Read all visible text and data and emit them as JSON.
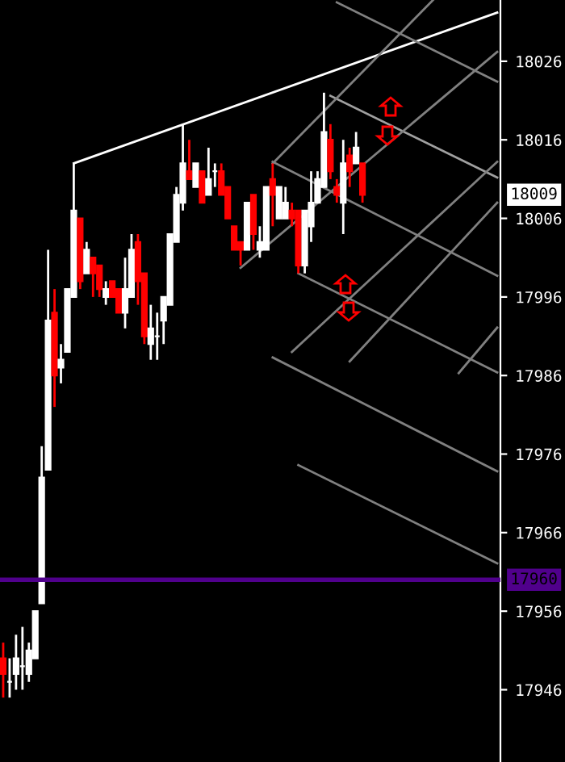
{
  "chart_data": {
    "type": "candlestick",
    "categories": [
      null,
      null,
      null,
      null,
      null,
      null,
      null,
      null,
      null,
      null,
      null,
      null,
      null,
      null,
      null,
      null,
      null,
      null,
      null,
      null,
      null,
      null,
      null,
      null,
      null,
      null,
      null,
      null,
      null,
      null,
      null,
      null,
      null,
      null,
      null,
      null,
      null,
      null,
      null,
      null,
      null,
      null,
      null,
      null,
      null,
      null,
      null,
      null,
      null,
      null,
      null,
      null,
      null,
      null,
      null,
      null,
      null,
      null,
      null,
      null,
      null,
      null,
      null,
      null,
      null,
      null,
      null,
      null,
      null,
      null,
      null,
      null,
      null,
      null,
      null,
      null,
      null,
      null
    ],
    "ohlc": [
      [
        17950,
        17952,
        17945,
        17948
      ],
      [
        17947,
        17950,
        17945,
        17947
      ],
      [
        17948,
        17953,
        17946,
        17950
      ],
      [
        17949,
        17954,
        17946,
        17949
      ],
      [
        17948,
        17952,
        17947,
        17951
      ],
      [
        17950,
        17956,
        17950,
        17956
      ],
      [
        17957,
        17977,
        17957,
        17973
      ],
      [
        17974,
        18002,
        17974,
        17993
      ],
      [
        17994,
        17997,
        17982,
        17986
      ],
      [
        17987,
        17990,
        17985,
        17988
      ],
      [
        17989,
        17997,
        17989,
        17997
      ],
      [
        17996,
        18013,
        17996,
        18007
      ],
      [
        18006,
        18006,
        17997,
        17998
      ],
      [
        17999,
        18003,
        17999,
        18002
      ],
      [
        18001,
        18001,
        17996,
        17999
      ],
      [
        18000,
        18000,
        17996,
        17997
      ],
      [
        17996,
        17998,
        17995,
        17997
      ],
      [
        17998,
        17998,
        17996,
        17996
      ],
      [
        17997,
        17997,
        17994,
        17994
      ],
      [
        17994,
        18001,
        17992,
        17997
      ],
      [
        17996,
        18004,
        17996,
        18002
      ],
      [
        18003,
        18004,
        17995,
        17998
      ],
      [
        17999,
        17999,
        17990,
        17991
      ],
      [
        17990,
        17995,
        17988,
        17992
      ],
      [
        17991,
        17994,
        17988,
        17991
      ],
      [
        17993,
        17996,
        17990,
        17996
      ],
      [
        17995,
        18004,
        17995,
        18004
      ],
      [
        18003,
        18010,
        18003,
        18009
      ],
      [
        18008,
        18018,
        18007,
        18013
      ],
      [
        18012,
        18016,
        18011,
        18011
      ],
      [
        18010,
        18013,
        18010,
        18013
      ],
      [
        18012,
        18012,
        18008,
        18008
      ],
      [
        18009,
        18015,
        18009,
        18011
      ],
      [
        18012,
        18013,
        18010,
        18012
      ],
      [
        18012,
        18013,
        18009,
        18009
      ],
      [
        18010,
        18010,
        18006,
        18006
      ],
      [
        18005,
        18005,
        18002,
        18002
      ],
      [
        18003,
        18003,
        18000,
        18002
      ],
      [
        18002,
        18008,
        18002,
        18008
      ],
      [
        18009,
        18009,
        18002,
        18004
      ],
      [
        18002,
        18005,
        18001,
        18003
      ],
      [
        18002,
        18010,
        18002,
        18010
      ],
      [
        18011,
        18013,
        18005,
        18009
      ],
      [
        18006,
        18010,
        18006,
        18010
      ],
      [
        18006,
        18010,
        18006,
        18008
      ],
      [
        18007,
        18008,
        18005,
        18006
      ],
      [
        18007,
        18007,
        17999,
        18000
      ],
      [
        18000,
        18007,
        17999,
        18007
      ],
      [
        18005,
        18012,
        18003,
        18008
      ],
      [
        18008,
        18012,
        18008,
        18011
      ],
      [
        18010,
        18022,
        18010,
        18017
      ],
      [
        18016,
        18018,
        18011,
        18012
      ],
      [
        18010,
        18011,
        18008,
        18009
      ],
      [
        18008,
        18016,
        18004,
        18013
      ],
      [
        18014,
        18015,
        18010,
        18012
      ],
      [
        18013,
        18017,
        18013,
        18015
      ],
      [
        18013,
        18013,
        18008,
        18009
      ],
      null,
      null,
      null,
      null,
      null,
      null,
      null,
      null,
      null,
      null,
      null,
      null,
      null,
      null,
      null,
      null,
      null,
      null,
      null,
      null,
      null
    ],
    "colors": [
      "#ff0000",
      "#ffffff",
      "#ffffff",
      "#ffffff",
      "#ffffff",
      "#ffffff",
      "#ffffff",
      "#ffffff",
      "#ff0000",
      "#ffffff",
      "#ffffff",
      "#ffffff",
      "#ff0000",
      "#ffffff",
      "#ff0000",
      "#ff0000",
      "#ffffff",
      "#ff0000",
      "#ff0000",
      "#ffffff",
      "#ffffff",
      "#ff0000",
      "#ff0000",
      "#ffffff",
      "#ffffff",
      "#ffffff",
      "#ffffff",
      "#ffffff",
      "#ffffff",
      "#ff0000",
      "#ffffff",
      "#ff0000",
      "#ffffff",
      "#ffffff",
      "#ff0000",
      "#ff0000",
      "#ff0000",
      "#ff0000",
      "#ffffff",
      "#ff0000",
      "#ffffff",
      "#ffffff",
      "#ff0000",
      "#ffffff",
      "#ffffff",
      "#ff0000",
      "#ff0000",
      "#ffffff",
      "#ffffff",
      "#ffffff",
      "#ffffff",
      "#ff0000",
      "#ff0000",
      "#ffffff",
      "#ff0000",
      "#ffffff",
      "#ff0000",
      null,
      null,
      null,
      null,
      null,
      null,
      null,
      null,
      null,
      null,
      null,
      null,
      null,
      null,
      null,
      null,
      null,
      null,
      null,
      null,
      null
    ],
    "series": [
      {
        "type": "line",
        "color": "#ffffff",
        "values": [
          null,
          null,
          null,
          null,
          null,
          null,
          null,
          null,
          null,
          null,
          null,
          18013,
          null,
          null,
          null,
          null,
          null,
          null,
          null,
          null,
          null,
          null,
          null,
          null,
          null,
          null,
          null,
          null,
          null,
          null,
          null,
          null,
          null,
          null,
          null,
          null,
          null,
          null,
          null,
          null,
          null,
          null,
          null,
          null,
          null,
          null,
          null,
          null,
          null,
          null,
          null,
          null,
          null,
          null,
          null,
          null,
          null,
          null,
          null,
          null,
          null,
          null,
          null,
          null,
          null,
          null,
          null,
          null,
          null,
          null,
          null,
          null,
          null,
          null,
          null,
          null,
          null,
          18032.2
        ]
      },
      {
        "type": "line",
        "color": "#808080",
        "values": [
          null,
          null,
          null,
          null,
          null,
          null,
          null,
          null,
          null,
          null,
          null,
          null,
          null,
          null,
          null,
          null,
          null,
          null,
          null,
          null,
          null,
          null,
          null,
          null,
          null,
          null,
          null,
          null,
          null,
          null,
          null,
          null,
          null,
          null,
          null,
          null,
          null,
          null,
          null,
          null,
          null,
          null,
          null,
          null,
          null,
          null,
          null,
          null,
          null,
          null,
          null,
          null,
          18033.5,
          null,
          null,
          null,
          null,
          null,
          null,
          null,
          null,
          null,
          null,
          null,
          null,
          null,
          null,
          null,
          null,
          null,
          null,
          null,
          null,
          null,
          null,
          null,
          null,
          18023.4
        ]
      },
      {
        "type": "line",
        "color": "#a0a0a0",
        "values": [
          null,
          null,
          null,
          null,
          null,
          null,
          null,
          null,
          null,
          null,
          null,
          null,
          null,
          null,
          null,
          null,
          null,
          null,
          null,
          null,
          null,
          null,
          null,
          null,
          null,
          null,
          null,
          null,
          null,
          null,
          null,
          null,
          null,
          null,
          null,
          null,
          null,
          null,
          null,
          null,
          null,
          null,
          null,
          null,
          null,
          null,
          null,
          null,
          null,
          null,
          null,
          18021.6,
          null,
          null,
          null,
          null,
          null,
          null,
          null,
          null,
          null,
          null,
          null,
          null,
          null,
          null,
          null,
          null,
          null,
          null,
          null,
          null,
          null,
          null,
          null,
          null,
          null,
          18011.2
        ]
      },
      {
        "type": "line",
        "color": "#808080",
        "values": [
          null,
          null,
          null,
          null,
          null,
          null,
          null,
          null,
          null,
          null,
          null,
          null,
          null,
          null,
          null,
          null,
          null,
          null,
          null,
          null,
          null,
          null,
          null,
          null,
          null,
          null,
          null,
          null,
          null,
          null,
          null,
          null,
          null,
          null,
          null,
          null,
          null,
          null,
          null,
          null,
          null,
          null,
          18013.2,
          null,
          null,
          null,
          null,
          null,
          null,
          null,
          null,
          null,
          null,
          null,
          null,
          null,
          null,
          null,
          null,
          null,
          null,
          null,
          null,
          null,
          null,
          null,
          null,
          null,
          null,
          null,
          null,
          null,
          null,
          null,
          null,
          null,
          null,
          17998.7
        ]
      },
      {
        "type": "line",
        "color": "#808080",
        "values": [
          null,
          null,
          null,
          null,
          null,
          null,
          null,
          null,
          null,
          null,
          null,
          null,
          null,
          null,
          null,
          null,
          null,
          null,
          null,
          null,
          null,
          null,
          null,
          null,
          null,
          null,
          null,
          null,
          null,
          null,
          null,
          null,
          null,
          null,
          null,
          null,
          null,
          null,
          null,
          null,
          null,
          null,
          null,
          null,
          null,
          null,
          17999,
          null,
          null,
          null,
          null,
          null,
          null,
          null,
          null,
          null,
          null,
          null,
          null,
          null,
          null,
          null,
          null,
          null,
          null,
          null,
          null,
          null,
          null,
          null,
          null,
          null,
          null,
          null,
          null,
          null,
          null,
          17986.4
        ]
      },
      {
        "type": "line",
        "color": "#808080",
        "values": [
          null,
          null,
          null,
          null,
          null,
          null,
          null,
          null,
          null,
          null,
          null,
          null,
          null,
          null,
          null,
          null,
          null,
          null,
          null,
          null,
          null,
          null,
          null,
          null,
          null,
          null,
          null,
          null,
          null,
          null,
          null,
          null,
          null,
          null,
          null,
          null,
          null,
          null,
          null,
          null,
          null,
          null,
          17988.3,
          null,
          null,
          null,
          null,
          null,
          null,
          null,
          null,
          null,
          null,
          null,
          null,
          null,
          null,
          null,
          null,
          null,
          null,
          null,
          null,
          null,
          null,
          null,
          null,
          null,
          null,
          null,
          null,
          null,
          null,
          null,
          null,
          null,
          null,
          17973.8
        ]
      },
      {
        "type": "line",
        "color": "#808080",
        "values": [
          null,
          null,
          null,
          null,
          null,
          null,
          null,
          null,
          null,
          null,
          null,
          null,
          null,
          null,
          null,
          null,
          null,
          null,
          null,
          null,
          null,
          null,
          null,
          null,
          null,
          null,
          null,
          null,
          null,
          null,
          null,
          null,
          null,
          null,
          null,
          null,
          null,
          null,
          null,
          null,
          null,
          null,
          null,
          null,
          null,
          null,
          17974.6,
          null,
          null,
          null,
          null,
          null,
          null,
          null,
          null,
          null,
          null,
          null,
          null,
          null,
          null,
          null,
          null,
          null,
          null,
          null,
          null,
          null,
          null,
          null,
          null,
          null,
          null,
          null,
          null,
          null,
          null,
          17962.1
        ]
      },
      {
        "type": "line",
        "color": "#808080",
        "values": [
          null,
          null,
          null,
          null,
          null,
          null,
          null,
          null,
          null,
          null,
          null,
          null,
          null,
          null,
          null,
          null,
          null,
          null,
          null,
          null,
          null,
          null,
          null,
          null,
          null,
          null,
          null,
          null,
          null,
          null,
          null,
          null,
          null,
          null,
          null,
          null,
          null,
          17999.7,
          null,
          null,
          null,
          null,
          null,
          null,
          null,
          null,
          null,
          null,
          null,
          null,
          null,
          null,
          null,
          null,
          null,
          null,
          null,
          null,
          null,
          null,
          null,
          null,
          null,
          null,
          null,
          null,
          null,
          null,
          null,
          null,
          null,
          null,
          null,
          null,
          null,
          null,
          null,
          18027.2
        ]
      },
      {
        "type": "line",
        "color": "#808080",
        "values": [
          null,
          null,
          null,
          null,
          null,
          null,
          null,
          null,
          null,
          null,
          null,
          null,
          null,
          null,
          null,
          null,
          null,
          null,
          null,
          null,
          null,
          null,
          null,
          null,
          null,
          null,
          null,
          null,
          null,
          null,
          null,
          null,
          null,
          null,
          null,
          null,
          null,
          null,
          null,
          null,
          null,
          null,
          18013,
          null,
          null,
          null,
          null,
          null,
          null,
          null,
          null,
          null,
          null,
          null,
          null,
          null,
          null,
          null,
          null,
          null,
          null,
          null,
          null,
          null,
          null,
          null,
          null,
          18033.8,
          null,
          null,
          null,
          null,
          null,
          null,
          null,
          null,
          null,
          null
        ]
      },
      {
        "type": "line",
        "color": "#808080",
        "values": [
          null,
          null,
          null,
          null,
          null,
          null,
          null,
          null,
          null,
          null,
          null,
          null,
          null,
          null,
          null,
          null,
          null,
          null,
          null,
          null,
          null,
          null,
          null,
          null,
          null,
          null,
          null,
          null,
          null,
          null,
          null,
          null,
          null,
          null,
          null,
          null,
          null,
          null,
          null,
          null,
          null,
          null,
          null,
          null,
          null,
          17989,
          null,
          null,
          null,
          null,
          null,
          null,
          null,
          null,
          null,
          null,
          null,
          null,
          null,
          null,
          null,
          null,
          null,
          null,
          null,
          null,
          null,
          null,
          null,
          null,
          null,
          null,
          null,
          null,
          null,
          null,
          null,
          18013.2
        ]
      },
      {
        "type": "line",
        "color": "#808080",
        "values": [
          null,
          null,
          null,
          null,
          null,
          null,
          null,
          null,
          null,
          null,
          null,
          null,
          null,
          null,
          null,
          null,
          null,
          null,
          null,
          null,
          null,
          null,
          null,
          null,
          null,
          null,
          null,
          null,
          null,
          null,
          null,
          null,
          null,
          null,
          null,
          null,
          null,
          null,
          null,
          null,
          null,
          null,
          null,
          null,
          null,
          null,
          null,
          null,
          null,
          null,
          null,
          null,
          null,
          null,
          17987.8,
          null,
          null,
          null,
          null,
          null,
          null,
          null,
          null,
          null,
          null,
          null,
          null,
          null,
          null,
          null,
          null,
          null,
          null,
          null,
          null,
          null,
          null,
          18008
        ]
      },
      {
        "type": "line",
        "color": "#808080",
        "values": [
          null,
          null,
          null,
          null,
          null,
          null,
          null,
          null,
          null,
          null,
          null,
          null,
          null,
          null,
          null,
          null,
          null,
          null,
          null,
          null,
          null,
          null,
          null,
          null,
          null,
          null,
          null,
          null,
          null,
          null,
          null,
          null,
          null,
          null,
          null,
          null,
          null,
          null,
          null,
          null,
          null,
          null,
          null,
          null,
          null,
          null,
          null,
          null,
          null,
          null,
          null,
          null,
          null,
          null,
          null,
          null,
          null,
          null,
          null,
          null,
          null,
          null,
          null,
          null,
          null,
          null,
          null,
          null,
          null,
          null,
          null,
          17986.3,
          null,
          null,
          null,
          null,
          null,
          17992.1
        ]
      }
    ],
    "ylim": [
      17936.8,
      18033.8
    ],
    "yticks": [
      17946,
      17956,
      17966,
      17976,
      17986,
      17996,
      18006,
      18016,
      18026
    ],
    "ref_lines": [
      {
        "axis": "y",
        "value": 17960,
        "label": "17960",
        "color": "#50008c"
      }
    ],
    "annotations": [
      "18009"
    ],
    "tick_labels": "y",
    "grid": false
  }
}
